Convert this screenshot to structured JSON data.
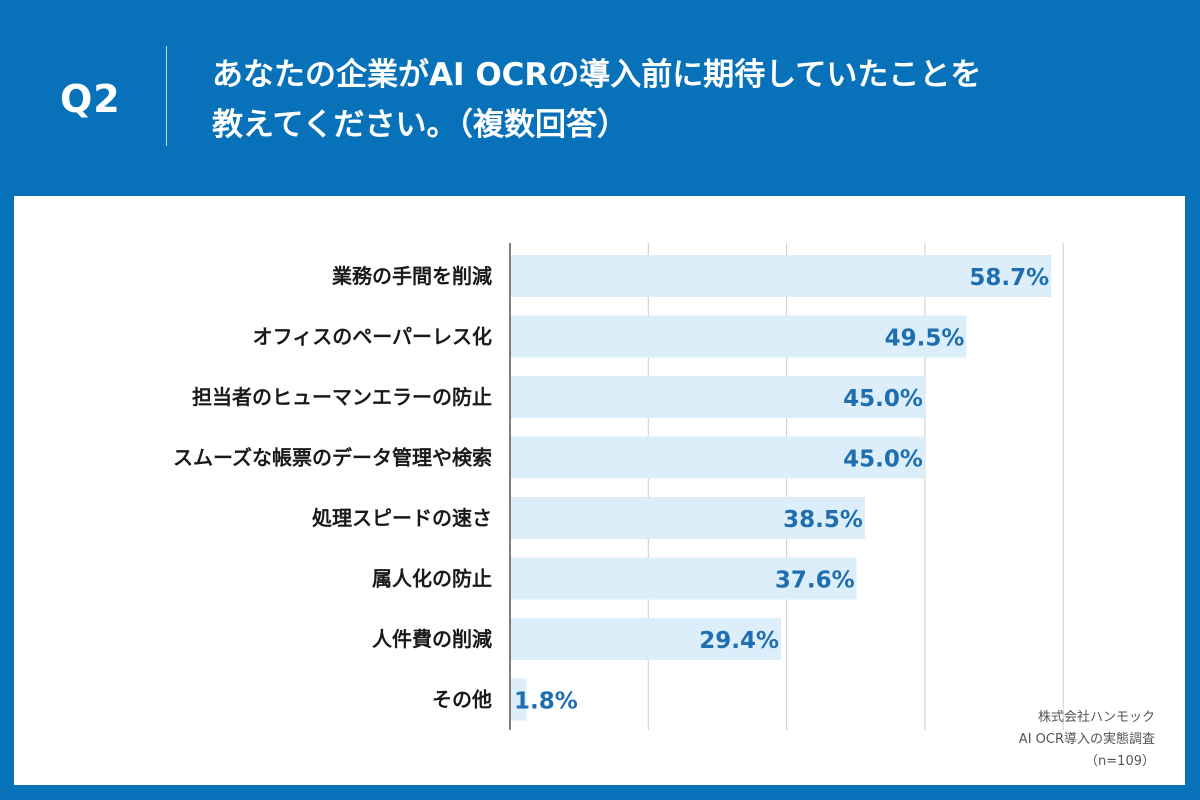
{
  "header": {
    "question_number": "Q2",
    "question_line1": "あなたの企業がAI OCRの導入前に期待していたことを",
    "question_line2": "教えてください。（複数回答）"
  },
  "colors": {
    "background": "#0772b9",
    "bar": "#dbeefa",
    "value_text": "#1f6fb0",
    "grid": "#cccccc",
    "axis": "#555555"
  },
  "chart_data": {
    "type": "bar",
    "orientation": "horizontal",
    "categories": [
      "業務の手間を削減",
      "オフィスのペーパーレス化",
      "担当者のヒューマンエラーの防止",
      "スムーズな帳票のデータ管理や検索",
      "処理スピードの速さ",
      "属人化の防止",
      "人件費の削減",
      "その他"
    ],
    "values": [
      58.7,
      49.5,
      45.0,
      45.0,
      38.5,
      37.6,
      29.4,
      1.8
    ],
    "value_labels": [
      "58.7%",
      "49.5%",
      "45.0%",
      "45.0%",
      "38.5%",
      "37.6%",
      "29.4%",
      "1.8%"
    ],
    "xlim": [
      0,
      60
    ],
    "grid": true
  },
  "source": {
    "company": "株式会社ハンモック",
    "survey": "AI OCR導入の実態調査",
    "sample": "（n=109）"
  }
}
